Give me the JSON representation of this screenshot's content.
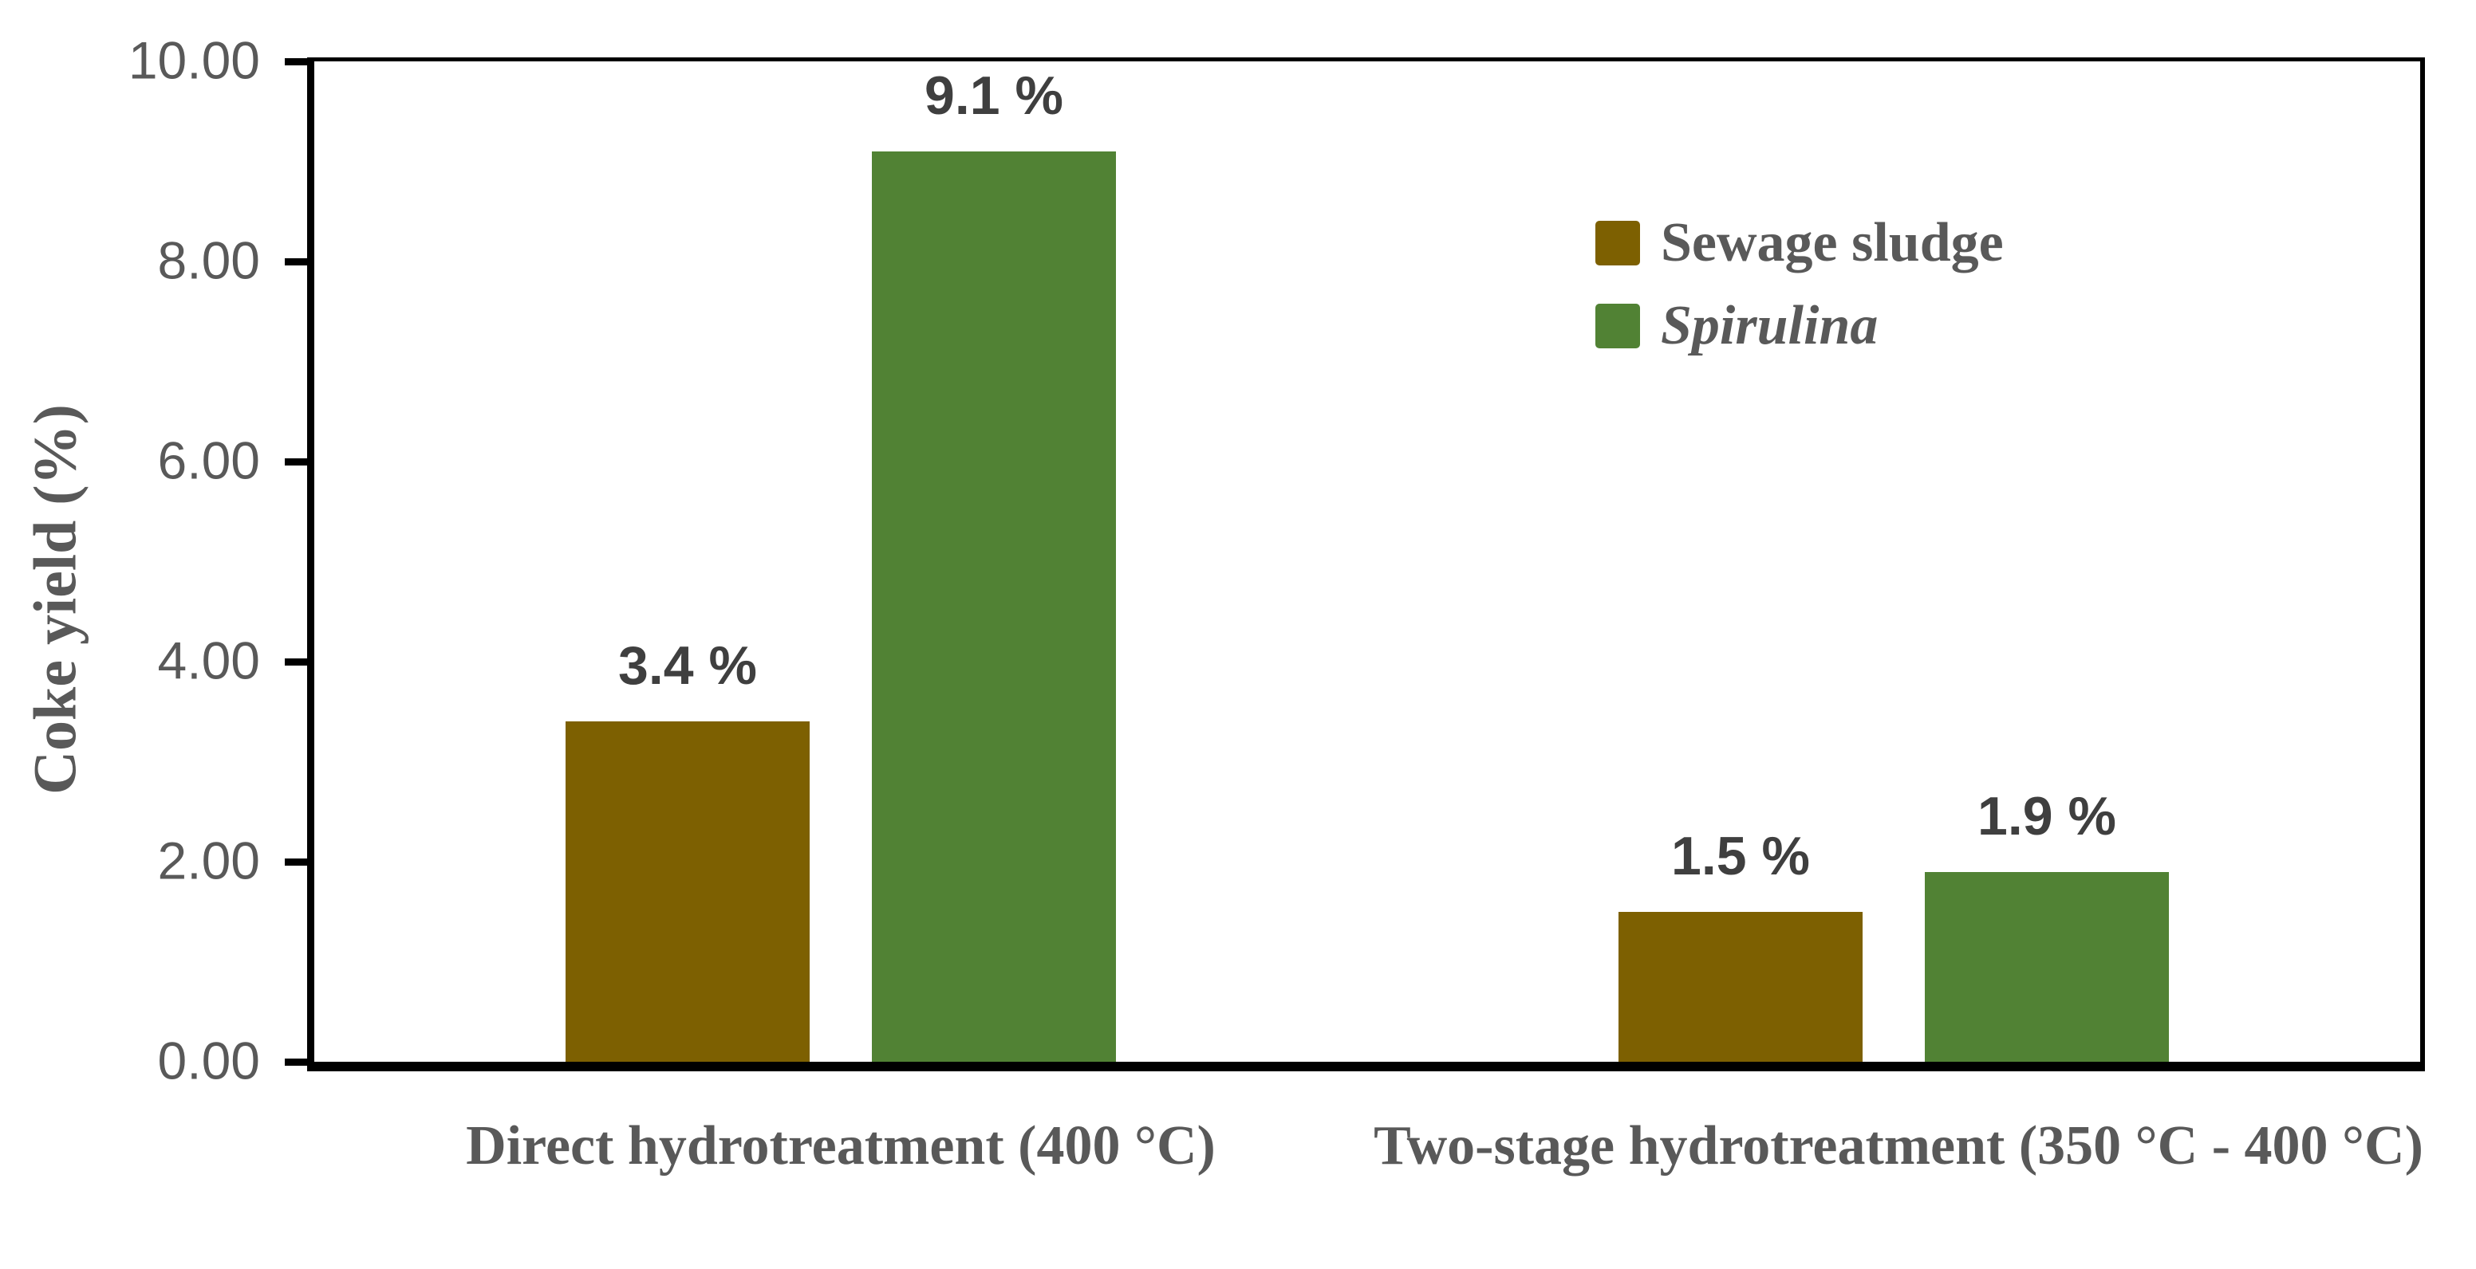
{
  "chart_data": {
    "type": "bar",
    "title": "",
    "xlabel": "",
    "ylabel": "Coke yield (%)",
    "ylim": [
      0,
      10
    ],
    "ytick_labels": [
      "0.00",
      "2.00",
      "4.00",
      "6.00",
      "8.00",
      "10.00"
    ],
    "grid": false,
    "legend_position": "top-right-inside",
    "categories": [
      "Direct hydrotreatment (400 °C)",
      "Two-stage hydrotreatment (350 °C - 400 °C)"
    ],
    "series": [
      {
        "name": "Sewage sludge",
        "color": "#7D6001",
        "italic": false,
        "values": [
          3.4,
          1.5
        ],
        "data_labels": [
          "3.4 %",
          "1.5 %"
        ]
      },
      {
        "name": "Spirulina",
        "color": "#518234",
        "italic": true,
        "values": [
          9.1,
          1.9
        ],
        "data_labels": [
          "9.1 %",
          "1.9 %"
        ]
      }
    ]
  },
  "colors": {
    "background": "#FFFFFF",
    "axis_line": "#000000",
    "tick_label": "#595959",
    "category_label": "#595959",
    "legend_label": "#595959",
    "data_label": "#3F3F3F"
  }
}
